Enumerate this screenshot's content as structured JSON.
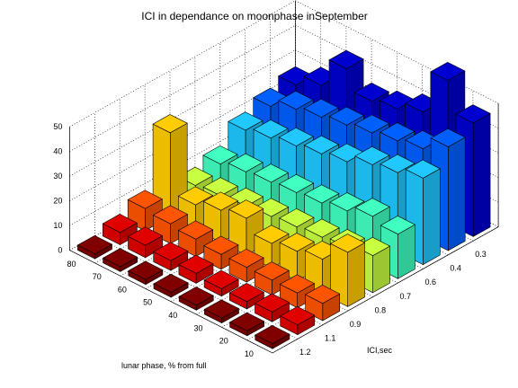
{
  "chart_data": {
    "type": "bar3d",
    "title": "ICI in dependance on moonphase inSeptember",
    "xlabel": "lunar phase, % from full",
    "ylabel": "ICI,sec",
    "zlim": [
      0,
      50
    ],
    "z_ticks": [
      "0",
      "10",
      "20",
      "30",
      "40",
      "50"
    ],
    "lunar_phase_ticks": [
      "80",
      "70",
      "60",
      "50",
      "40",
      "30",
      "20",
      "10"
    ],
    "ici_ticks": [
      "1.2",
      "1.1",
      "0.9",
      "0.8",
      "0.7",
      "0.6",
      "0.4",
      "0.3"
    ],
    "grid": true,
    "colormap": "jet",
    "rows": [
      {
        "ici": "1.2",
        "color": "#800000",
        "values": [
          2,
          2,
          2,
          2,
          2,
          2,
          2,
          2
        ]
      },
      {
        "ici": "1.1",
        "color": "#e00000",
        "values": [
          4,
          4,
          3,
          3,
          4,
          4,
          5,
          5
        ]
      },
      {
        "ici": "0.9",
        "color": "#ff5500",
        "values": [
          7,
          6,
          6,
          6,
          6,
          7,
          8,
          9
        ]
      },
      {
        "ici": "0.8",
        "color": "#ffcc00",
        "values": [
          22,
          14,
          12,
          10,
          15,
          13,
          10,
          34
        ]
      },
      {
        "ici": "0.7",
        "color": "#c8ff40",
        "values": [
          15,
          13,
          12,
          11,
          10,
          9,
          8,
          7
        ]
      },
      {
        "ici": "0.6",
        "color": "#40ffc0",
        "values": [
          18,
          20,
          17,
          15,
          14,
          13,
          12,
          10
        ]
      },
      {
        "ici": "0.5",
        "color": "#20c8ff",
        "values": [
          35,
          32,
          30,
          26,
          24,
          22,
          20,
          18
        ]
      },
      {
        "ici": "0.4",
        "color": "#0060ff",
        "values": [
          42,
          36,
          34,
          32,
          30,
          28,
          26,
          22
        ]
      },
      {
        "ici": "0.3",
        "color": "#0000d0",
        "values": [
          46,
          58,
          40,
          36,
          34,
          42,
          30,
          25
        ]
      }
    ]
  }
}
